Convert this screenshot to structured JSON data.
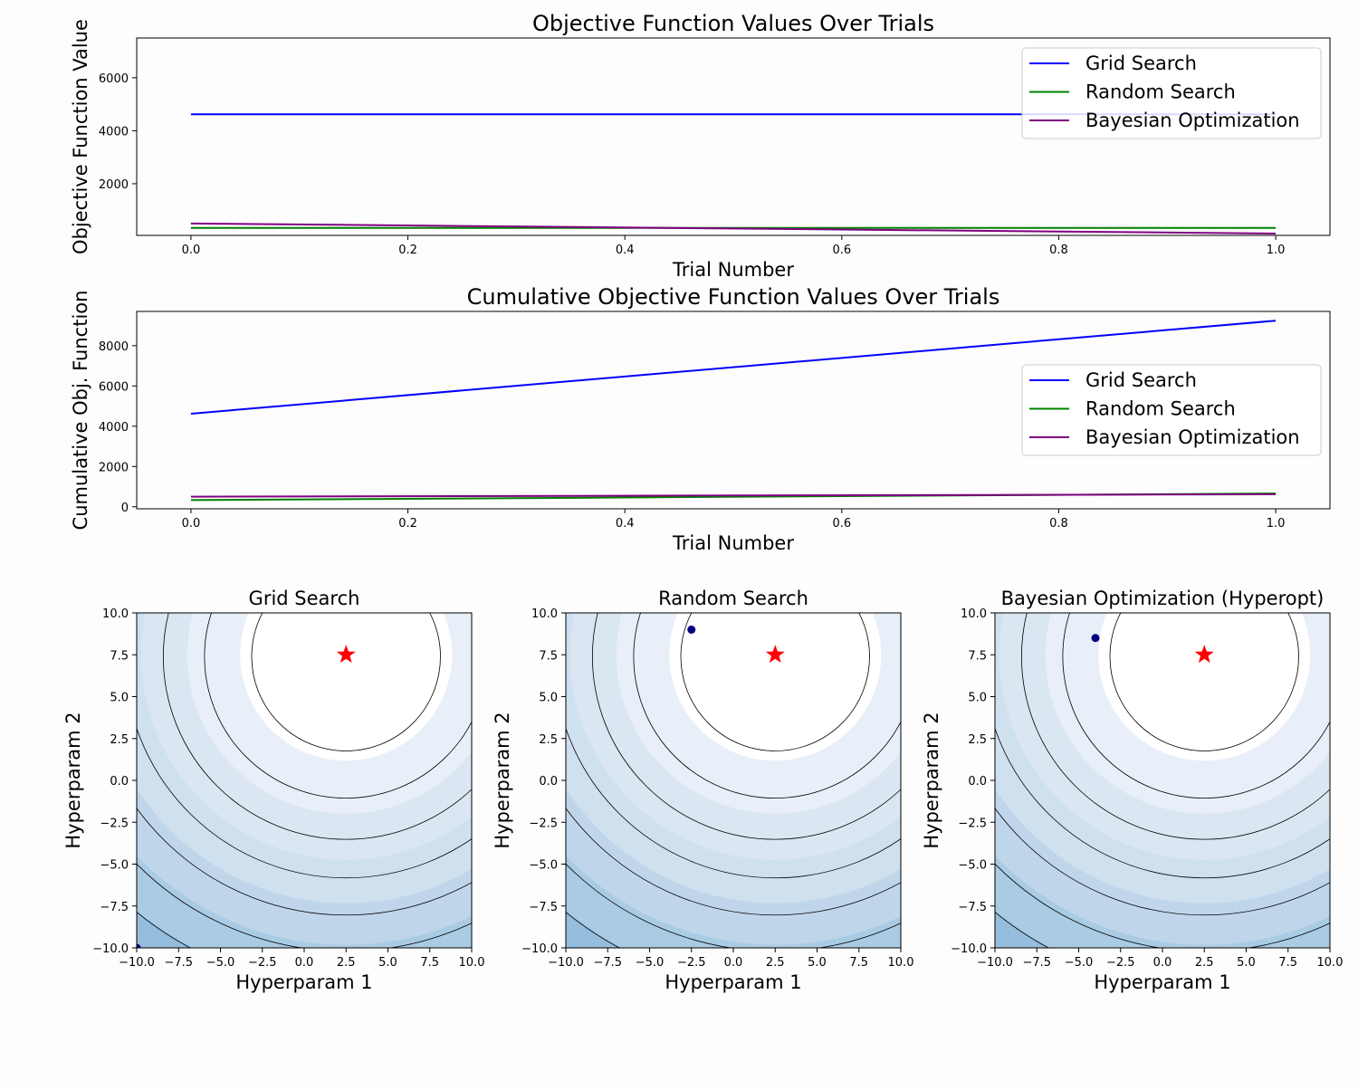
{
  "colors": {
    "grid_search": "#0000ff",
    "random_search": "#008000",
    "bayesian": "#800080",
    "optimum_marker": "#ff0000",
    "sample_point": "#000080",
    "contour_line": "#000000"
  },
  "chart_data": [
    {
      "type": "line",
      "title": "Objective Function Values Over Trials",
      "xlabel": "Trial Number",
      "ylabel": "Objective Function Value",
      "xlim": [
        -0.05,
        1.05
      ],
      "ylim": [
        50,
        7500
      ],
      "xticks": [
        0.0,
        0.2,
        0.4,
        0.6,
        0.8,
        1.0
      ],
      "xtick_labels": [
        "0.0",
        "0.2",
        "0.4",
        "0.6",
        "0.8",
        "1.0"
      ],
      "yticks": [
        2000,
        4000,
        6000
      ],
      "ytick_labels": [
        "2000",
        "4000",
        "6000"
      ],
      "legend_position": "top-right",
      "grid": false,
      "x": [
        0,
        1
      ],
      "series": [
        {
          "name": "Grid Search",
          "color_key": "grid_search",
          "values": [
            4620,
            4620
          ]
        },
        {
          "name": "Random Search",
          "color_key": "random_search",
          "values": [
            330,
            330
          ]
        },
        {
          "name": "Bayesian Optimization",
          "color_key": "bayesian",
          "values": [
            500,
            120
          ]
        }
      ]
    },
    {
      "type": "line",
      "title": "Cumulative Objective Function Values Over Trials",
      "xlabel": "Trial Number",
      "ylabel": "Cumulative Obj. Function",
      "xlim": [
        -0.05,
        1.05
      ],
      "ylim": [
        -100,
        9700
      ],
      "xticks": [
        0.0,
        0.2,
        0.4,
        0.6,
        0.8,
        1.0
      ],
      "xtick_labels": [
        "0.0",
        "0.2",
        "0.4",
        "0.6",
        "0.8",
        "1.0"
      ],
      "yticks": [
        0,
        2000,
        4000,
        6000,
        8000
      ],
      "ytick_labels": [
        "0",
        "2000",
        "4000",
        "6000",
        "8000"
      ],
      "legend_position": "center-right",
      "grid": false,
      "x": [
        0,
        1
      ],
      "series": [
        {
          "name": "Grid Search",
          "color_key": "grid_search",
          "values": [
            4620,
            9240
          ]
        },
        {
          "name": "Random Search",
          "color_key": "random_search",
          "values": [
            330,
            660
          ]
        },
        {
          "name": "Bayesian Optimization",
          "color_key": "bayesian",
          "values": [
            500,
            620
          ]
        }
      ]
    },
    {
      "type": "contour",
      "title": "Grid Search",
      "xlabel": "Hyperparam 1",
      "ylabel": "Hyperparam 2",
      "xlim": [
        -10,
        10
      ],
      "ylim": [
        -10,
        10
      ],
      "ticks": [
        -10,
        -7.5,
        -5,
        -2.5,
        0,
        2.5,
        5,
        7.5,
        10
      ],
      "tick_labels": [
        "−10.0",
        "−7.5",
        "−5.0",
        "−2.5",
        "0.0",
        "2.5",
        "5.0",
        "7.5",
        "10.0"
      ],
      "optimum": {
        "x": 2.5,
        "y": 7.5,
        "label": "optimum"
      },
      "samples": [
        {
          "x": -10,
          "y": -10
        }
      ]
    },
    {
      "type": "contour",
      "title": "Random Search",
      "xlabel": "Hyperparam 1",
      "ylabel": "Hyperparam 2",
      "xlim": [
        -10,
        10
      ],
      "ylim": [
        -10,
        10
      ],
      "ticks": [
        -10,
        -7.5,
        -5,
        -2.5,
        0,
        2.5,
        5,
        7.5,
        10
      ],
      "tick_labels": [
        "−10.0",
        "−7.5",
        "−5.0",
        "−2.5",
        "0.0",
        "2.5",
        "5.0",
        "7.5",
        "10.0"
      ],
      "optimum": {
        "x": 2.5,
        "y": 7.5,
        "label": "optimum"
      },
      "samples": [
        {
          "x": -2.5,
          "y": 9.0
        }
      ]
    },
    {
      "type": "contour",
      "title": "Bayesian Optimization (Hyperopt)",
      "xlabel": "Hyperparam 1",
      "ylabel": "Hyperparam 2",
      "xlim": [
        -10,
        10
      ],
      "ylim": [
        -10,
        10
      ],
      "ticks": [
        -10,
        -7.5,
        -5,
        -2.5,
        0,
        2.5,
        5,
        7.5,
        10
      ],
      "tick_labels": [
        "−10.0",
        "−7.5",
        "−5.0",
        "−2.5",
        "0.0",
        "2.5",
        "5.0",
        "7.5",
        "10.0"
      ],
      "optimum": {
        "x": 2.5,
        "y": 7.5,
        "label": "optimum"
      },
      "samples": [
        {
          "x": -4.0,
          "y": 8.5
        }
      ]
    }
  ]
}
